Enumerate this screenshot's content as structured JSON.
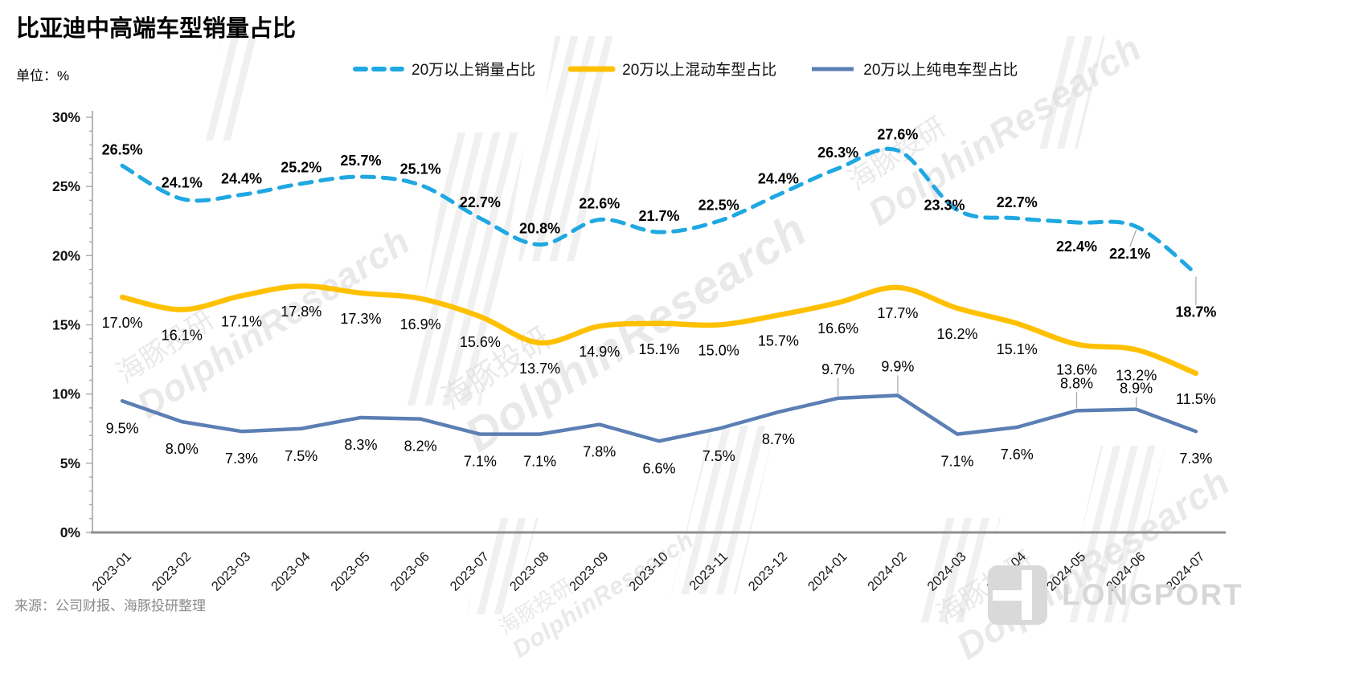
{
  "title": "比亚迪中高端车型销量占比",
  "unit_label": "单位：%",
  "source": "来源：公司财报、海豚投研整理",
  "brand": {
    "name": "LONGPORT"
  },
  "watermark": {
    "cn": "海豚投研",
    "en": "DolphinResearch"
  },
  "chart_data": {
    "type": "line",
    "title": "比亚迪中高端车型销量占比",
    "ylabel": "%",
    "ylim": [
      0,
      30
    ],
    "y_ticks": [
      "0%",
      "5%",
      "10%",
      "15%",
      "20%",
      "25%",
      "30%"
    ],
    "grid": false,
    "legend_position": "top",
    "categories": [
      "2023-01",
      "2023-02",
      "2023-03",
      "2023-04",
      "2023-05",
      "2023-06",
      "2023-07",
      "2023-08",
      "2023-09",
      "2023-10",
      "2023-11",
      "2023-12",
      "2024-01",
      "2024-02",
      "2024-03",
      "2024-04",
      "2024-05",
      "2024-06",
      "2024-07"
    ],
    "series": [
      {
        "name": "20万以上销量占比",
        "color": "#1FA8E1",
        "style": "dashed",
        "smooth": true,
        "values": [
          26.5,
          24.1,
          24.4,
          25.2,
          25.7,
          25.1,
          22.7,
          20.8,
          22.6,
          21.7,
          22.5,
          24.4,
          26.3,
          27.6,
          23.3,
          22.7,
          22.4,
          22.1,
          18.7
        ]
      },
      {
        "name": "20万以上混动车型占比",
        "color": "#FFC000",
        "style": "solid",
        "smooth": true,
        "values": [
          17.0,
          16.1,
          17.1,
          17.8,
          17.3,
          16.9,
          15.6,
          13.7,
          14.9,
          15.1,
          15.0,
          15.7,
          16.6,
          17.7,
          16.2,
          15.1,
          13.6,
          13.2,
          11.5
        ]
      },
      {
        "name": "20万以上纯电车型占比",
        "color": "#5B7FB4",
        "style": "solid",
        "smooth": false,
        "values": [
          9.5,
          8.0,
          7.3,
          7.5,
          8.3,
          8.2,
          7.1,
          7.1,
          7.8,
          6.6,
          7.5,
          8.7,
          9.7,
          9.9,
          7.1,
          7.6,
          8.8,
          8.9,
          7.3
        ]
      }
    ]
  }
}
